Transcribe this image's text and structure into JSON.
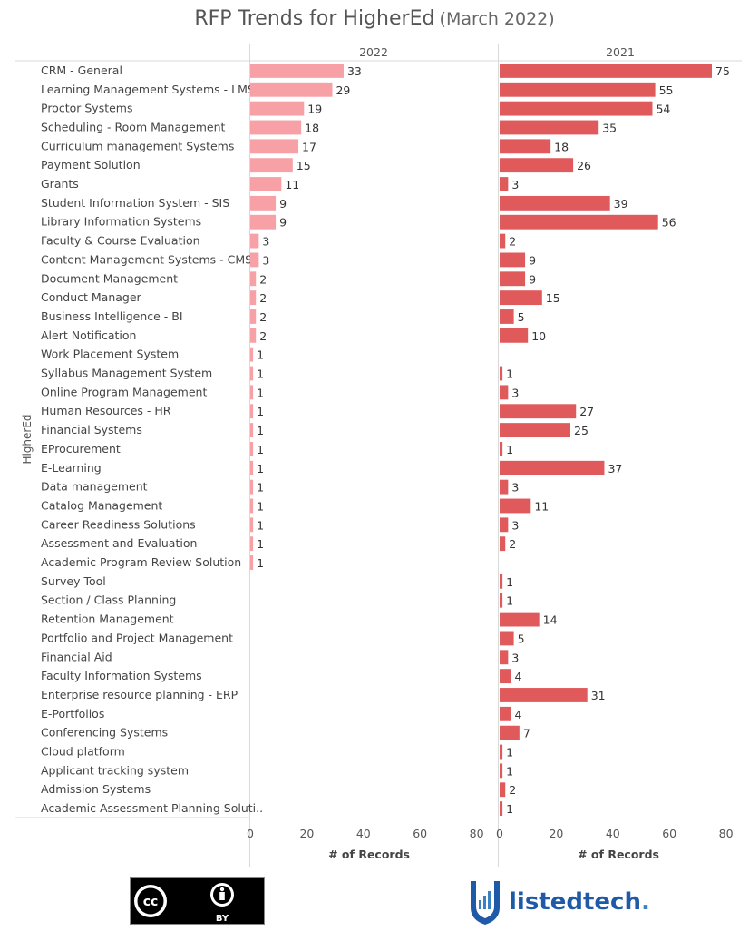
{
  "title": {
    "main": "RFP Trends for HigherEd",
    "sub": "(March 2022)"
  },
  "chart_data": {
    "type": "bar",
    "orientation": "horizontal",
    "row_axis_label": "HigherEd",
    "xlabel": "# of Records",
    "xlim": [
      0,
      85
    ],
    "xticks": [
      0,
      20,
      40,
      60,
      80
    ],
    "categories": [
      "CRM - General",
      "Learning Management Systems - LMS",
      "Proctor Systems",
      "Scheduling - Room Management",
      "Curriculum management Systems",
      "Payment Solution",
      "Grants",
      "Student Information System - SIS",
      "Library Information Systems",
      "Faculty & Course Evaluation",
      "Content Management Systems - CMS",
      "Document Management",
      "Conduct Manager",
      "Business Intelligence - BI",
      "Alert Notification",
      "Work Placement System",
      "Syllabus Management System",
      "Online Program Management",
      "Human Resources - HR",
      "Financial Systems",
      "EProcurement",
      "E-Learning",
      "Data management",
      "Catalog Management",
      "Career Readiness Solutions",
      "Assessment and Evaluation",
      "Academic Program Review Solution",
      "Survey Tool",
      "Section / Class Planning",
      "Retention Management",
      "Portfolio and Project Management",
      "Financial Aid",
      "Faculty Information Systems",
      "Enterprise resource planning - ERP",
      "E-Portfolios",
      "Conferencing Systems",
      "Cloud platform",
      "Applicant tracking system",
      "Admission Systems",
      "Academic Assessment Planning Soluti.."
    ],
    "series": [
      {
        "name": "2022",
        "color": "#f7a0a6",
        "values": [
          33,
          29,
          19,
          18,
          17,
          15,
          11,
          9,
          9,
          3,
          3,
          2,
          2,
          2,
          2,
          1,
          1,
          1,
          1,
          1,
          1,
          1,
          1,
          1,
          1,
          1,
          1,
          null,
          null,
          null,
          null,
          null,
          null,
          null,
          null,
          null,
          null,
          null,
          null,
          null
        ]
      },
      {
        "name": "2021",
        "color": "#e05a5c",
        "values": [
          75,
          55,
          54,
          35,
          18,
          26,
          3,
          39,
          56,
          2,
          9,
          9,
          15,
          5,
          10,
          null,
          1,
          3,
          27,
          25,
          1,
          37,
          3,
          11,
          3,
          2,
          null,
          1,
          1,
          14,
          5,
          3,
          4,
          31,
          4,
          7,
          1,
          1,
          2,
          1
        ]
      }
    ],
    "grid": false
  },
  "footer": {
    "license_label": "BY",
    "brand": {
      "part1": "listed",
      "part2": "tech",
      "dot": ".",
      "color": "#1e5aa8"
    }
  }
}
